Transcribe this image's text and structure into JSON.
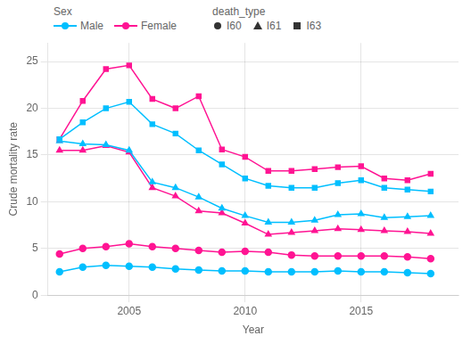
{
  "chart_data": {
    "type": "line",
    "xlabel": "Year",
    "ylabel": "Crude mortality rate",
    "x": [
      2002,
      2003,
      2004,
      2005,
      2006,
      2007,
      2008,
      2009,
      2010,
      2011,
      2012,
      2013,
      2014,
      2015,
      2016,
      2017,
      2018
    ],
    "xlim": [
      2001.5,
      2019.2
    ],
    "xticks": [
      2005,
      2010,
      2015
    ],
    "ylim": [
      0,
      27
    ],
    "yticks": [
      0,
      5,
      10,
      15,
      20,
      25
    ],
    "grid": true,
    "legend": "top",
    "legend_groups": [
      {
        "title": "Sex",
        "entries": [
          {
            "name": "Male",
            "color": "#00BFFF",
            "marker": "circle",
            "line_style": "solid"
          },
          {
            "name": "Female",
            "color": "#FF1493",
            "marker": "circle",
            "line_style": "solid"
          }
        ]
      },
      {
        "title": "death_type",
        "entries": [
          {
            "name": "I60",
            "color": "#333333",
            "marker": "circle",
            "line_style": "none"
          },
          {
            "name": "I61",
            "color": "#333333",
            "marker": "triangle",
            "line_style": "none"
          },
          {
            "name": "I63",
            "color": "#333333",
            "marker": "square",
            "line_style": "none"
          }
        ]
      }
    ],
    "series": [
      {
        "name": "Male",
        "death_type": "I63",
        "color": "#00BFFF",
        "marker": "square",
        "values": [
          16.7,
          18.5,
          20.0,
          20.7,
          18.3,
          17.3,
          15.5,
          14.0,
          12.5,
          11.7,
          11.5,
          11.5,
          12.0,
          12.3,
          11.5,
          11.3,
          11.1
        ]
      },
      {
        "name": "Female",
        "death_type": "I63",
        "color": "#FF1493",
        "marker": "square",
        "values": [
          16.7,
          20.8,
          24.2,
          24.6,
          21.0,
          20.0,
          21.3,
          15.6,
          14.8,
          13.3,
          13.3,
          13.5,
          13.7,
          13.8,
          12.5,
          12.3,
          13.0
        ]
      },
      {
        "name": "Male",
        "death_type": "I61",
        "color": "#00BFFF",
        "marker": "triangle",
        "values": [
          16.5,
          16.2,
          16.1,
          15.5,
          12.1,
          11.5,
          10.5,
          9.3,
          8.5,
          7.8,
          7.8,
          8.0,
          8.6,
          8.7,
          8.3,
          8.4,
          8.5
        ]
      },
      {
        "name": "Female",
        "death_type": "I61",
        "color": "#FF1493",
        "marker": "triangle",
        "values": [
          15.5,
          15.5,
          16.0,
          15.3,
          11.5,
          10.6,
          9.0,
          8.8,
          7.7,
          6.5,
          6.7,
          6.9,
          7.1,
          7.0,
          6.9,
          6.8,
          6.6
        ]
      },
      {
        "name": "Male",
        "death_type": "I60",
        "color": "#00BFFF",
        "marker": "circle",
        "values": [
          2.5,
          3.0,
          3.2,
          3.1,
          3.0,
          2.8,
          2.7,
          2.6,
          2.6,
          2.5,
          2.5,
          2.5,
          2.6,
          2.5,
          2.5,
          2.4,
          2.3
        ]
      },
      {
        "name": "Female",
        "death_type": "I60",
        "color": "#FF1493",
        "marker": "circle",
        "values": [
          4.4,
          5.0,
          5.2,
          5.5,
          5.2,
          5.0,
          4.8,
          4.6,
          4.7,
          4.6,
          4.3,
          4.2,
          4.2,
          4.2,
          4.2,
          4.1,
          3.9
        ]
      }
    ]
  }
}
